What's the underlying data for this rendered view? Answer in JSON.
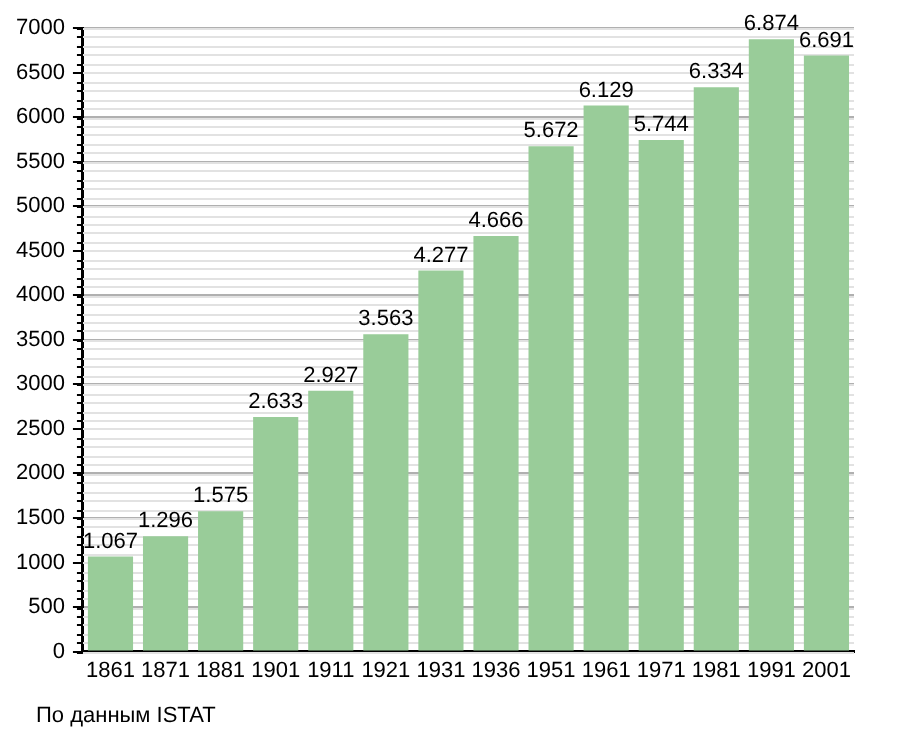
{
  "chart_data": {
    "type": "bar",
    "categories": [
      "1861",
      "1871",
      "1881",
      "1901",
      "1911",
      "1921",
      "1931",
      "1936",
      "1951",
      "1961",
      "1971",
      "1981",
      "1991",
      "2001"
    ],
    "values": [
      1067,
      1296,
      1575,
      2633,
      2927,
      3563,
      4277,
      4666,
      5672,
      6129,
      5744,
      6334,
      6874,
      6691
    ],
    "value_labels": [
      "1.067",
      "1.296",
      "1.575",
      "2.633",
      "2.927",
      "3.563",
      "4.277",
      "4.666",
      "5.672",
      "6.129",
      "5.744",
      "6.334",
      "6.874",
      "6.691"
    ],
    "color": "#99cc99",
    "ylim": [
      0,
      7000
    ],
    "yticks": [
      0,
      500,
      1000,
      1500,
      2000,
      2500,
      3000,
      3500,
      4000,
      4500,
      5000,
      5500,
      6000,
      6500,
      7000
    ],
    "grid": "y",
    "legend": false,
    "annotations": [
      "По данным  ISTAT"
    ]
  }
}
